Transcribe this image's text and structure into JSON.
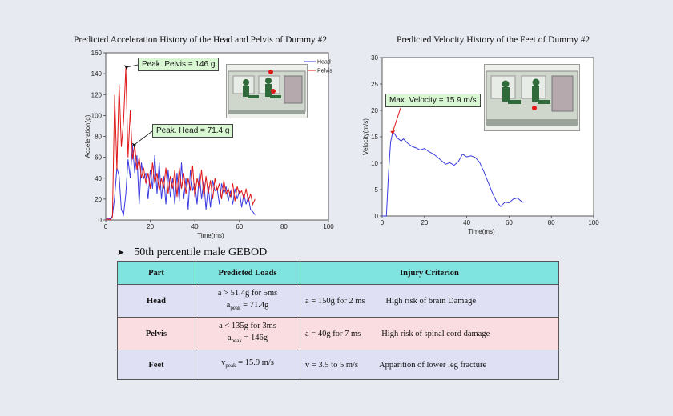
{
  "chart_data": [
    {
      "type": "line",
      "title": "Predicted Acceleration  History of the Head and Pelvis  of Dummy #2",
      "xlabel": "Time(ms)",
      "ylabel": "Acceleration(g)",
      "xlim": [
        0,
        100
      ],
      "ylim": [
        0,
        160
      ],
      "xticks": [
        "0",
        "20",
        "40",
        "60",
        "80",
        "100"
      ],
      "yticks": [
        "0",
        "20",
        "40",
        "60",
        "80",
        "100",
        "120",
        "140",
        "160"
      ],
      "legend": "top-right",
      "series": [
        {
          "name": "Head",
          "color": "#3a3ae0",
          "x": [
            0,
            1,
            2,
            3,
            4,
            5,
            6,
            7,
            8,
            9,
            10,
            11,
            12,
            13,
            14,
            15,
            16,
            17,
            18,
            19,
            20,
            21,
            22,
            23,
            24,
            25,
            26,
            27,
            28,
            29,
            30,
            31,
            32,
            33,
            34,
            35,
            36,
            37,
            38,
            39,
            40,
            41,
            42,
            43,
            44,
            45,
            46,
            47,
            48,
            49,
            50,
            51,
            52,
            53,
            54,
            55,
            56,
            57,
            58,
            59,
            60,
            61,
            62,
            63,
            64,
            65,
            66,
            67
          ],
          "values": [
            0,
            2,
            1,
            4,
            22,
            50,
            42,
            10,
            5,
            25,
            58,
            40,
            72,
            45,
            62,
            15,
            55,
            40,
            45,
            20,
            48,
            30,
            62,
            25,
            55,
            20,
            42,
            15,
            48,
            22,
            40,
            15,
            45,
            18,
            55,
            20,
            40,
            10,
            48,
            28,
            35,
            15,
            45,
            20,
            38,
            10,
            32,
            12,
            38,
            28,
            30,
            15,
            35,
            25,
            32,
            18,
            28,
            15,
            30,
            20,
            28,
            12,
            25,
            15,
            22,
            10,
            8,
            5
          ]
        },
        {
          "name": "Pelvis",
          "color": "#e01818",
          "x": [
            0,
            1,
            2,
            3,
            4,
            5,
            6,
            7,
            8,
            9,
            10,
            11,
            12,
            13,
            14,
            15,
            16,
            17,
            18,
            19,
            20,
            21,
            22,
            23,
            24,
            25,
            26,
            27,
            28,
            29,
            30,
            31,
            32,
            33,
            34,
            35,
            36,
            37,
            38,
            39,
            40,
            41,
            42,
            43,
            44,
            45,
            46,
            47,
            48,
            49,
            50,
            51,
            52,
            53,
            54,
            55,
            56,
            57,
            58,
            59,
            60,
            61,
            62,
            63,
            64,
            65,
            66,
            67
          ],
          "values": [
            0,
            1,
            0,
            3,
            120,
            48,
            130,
            70,
            95,
            146,
            60,
            105,
            58,
            72,
            48,
            60,
            40,
            50,
            35,
            45,
            30,
            55,
            35,
            45,
            28,
            40,
            30,
            50,
            25,
            42,
            30,
            48,
            22,
            50,
            30,
            45,
            25,
            40,
            28,
            52,
            22,
            40,
            30,
            48,
            22,
            42,
            25,
            38,
            20,
            40,
            28,
            35,
            20,
            38,
            25,
            30,
            22,
            35,
            18,
            32,
            25,
            28,
            20,
            30,
            18,
            25,
            15,
            20
          ]
        }
      ],
      "annotations": [
        "Peak. Pelvis = 146 g",
        "Peak. Head = 71.4 g"
      ]
    },
    {
      "type": "line",
      "title": "Predicted Velocity  History of the Feet of Dummy  #2",
      "xlabel": "Time(ms)",
      "ylabel": "Velocity(m/s)",
      "xlim": [
        0,
        100
      ],
      "ylim": [
        0,
        30
      ],
      "xticks": [
        "0",
        "20",
        "40",
        "60",
        "80",
        "100"
      ],
      "yticks": [
        "0",
        "5",
        "10",
        "15",
        "20",
        "25",
        "30"
      ],
      "series": [
        {
          "color": "#3a3ae0",
          "x": [
            0,
            2,
            3,
            4,
            5,
            6,
            7,
            8,
            9,
            10,
            12,
            14,
            16,
            18,
            20,
            22,
            24,
            26,
            28,
            30,
            32,
            34,
            36,
            38,
            40,
            42,
            44,
            46,
            48,
            50,
            52,
            54,
            56,
            58,
            60,
            62,
            64,
            66,
            67
          ],
          "values": [
            0,
            0,
            8,
            14,
            15.9,
            15.5,
            14.8,
            14.5,
            14.2,
            14.6,
            13.8,
            13.2,
            12.9,
            12.5,
            12.8,
            12.2,
            11.8,
            11.2,
            10.5,
            9.8,
            10.1,
            9.6,
            10.3,
            11.7,
            11.2,
            11.4,
            11.1,
            10.2,
            8.5,
            6.5,
            4.5,
            2.8,
            1.8,
            2.6,
            2.5,
            3.2,
            3.4,
            2.7,
            2.6
          ]
        }
      ],
      "annotations": [
        "Max. Velocity = 15.9 m/s"
      ]
    }
  ],
  "section": {
    "heading": "50th percentile male GEBOD"
  },
  "table": {
    "headers": [
      "Part",
      "Predicted  Loads",
      "Injury  Criterion"
    ],
    "rows": [
      {
        "part": "Head",
        "load1": "a > 51.4g for 5ms",
        "load2_prefix": "a",
        "load2_sub": "peak",
        "load2_rest": " = 71.4g",
        "crit": "a = 150g for 2 ms",
        "result": "High  risk  of  brain  Damage"
      },
      {
        "part": "Pelvis",
        "load1": "a < 135g for 3ms",
        "load2_prefix": "a",
        "load2_sub": "peak",
        "load2_rest": " = 146g",
        "crit": "a = 40g for 7 ms",
        "result": "High  risk  of  spinal  cord  damage"
      },
      {
        "part": "Feet",
        "load1_prefix": "v",
        "load1_sub": "peak",
        "load1_rest": " = 15.9 m/s",
        "crit": "v = 3.5 to 5 m/s",
        "result": "Apparition  of  lower  leg  fracture"
      }
    ]
  }
}
